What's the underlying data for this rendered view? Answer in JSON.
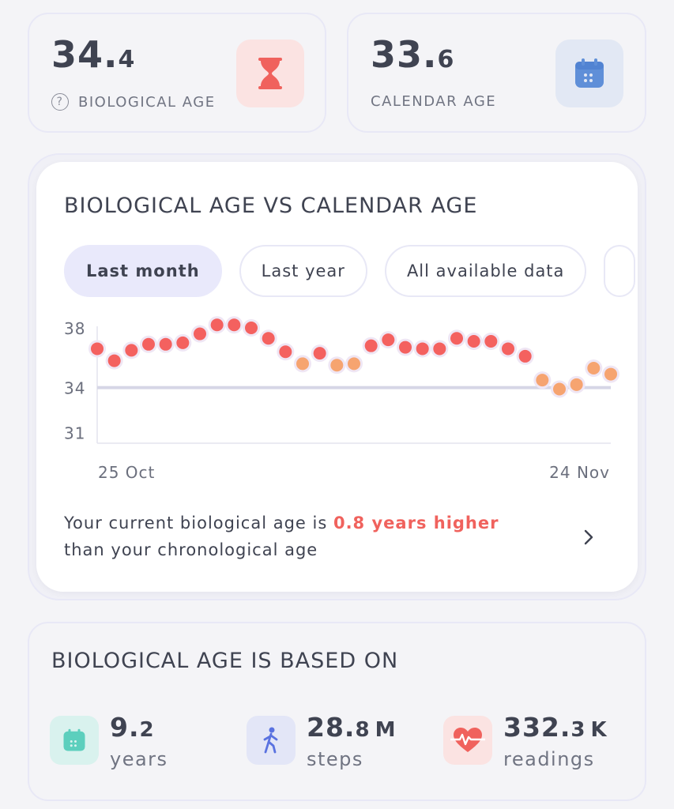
{
  "bio_age": {
    "int": "34.",
    "dec": "4",
    "label": "BIOLOGICAL AGE",
    "icon": "hourglass-icon",
    "icon_color": "#f0625d"
  },
  "cal_age": {
    "int": "33.",
    "dec": "6",
    "label": "CALENDAR AGE",
    "icon": "calendar-icon",
    "icon_color": "#5f8fd8"
  },
  "chart": {
    "title": "BIOLOGICAL AGE VS CALENDAR AGE",
    "tabs": [
      "Last month",
      "Last year",
      "All available data"
    ],
    "summary_prefix": "Your current biological age is ",
    "summary_highlight": "0.8 years higher",
    "summary_suffix": "than your chronological age"
  },
  "chart_data": {
    "type": "scatter",
    "x_labels": [
      "25 Oct",
      "24 Nov"
    ],
    "y_ticks": [
      38,
      34,
      31
    ],
    "ylim": [
      30,
      39
    ],
    "reference_line": 34,
    "values": [
      36.6,
      35.8,
      36.5,
      36.9,
      36.9,
      37.0,
      37.6,
      38.2,
      38.2,
      38.0,
      37.3,
      36.4,
      35.6,
      36.3,
      35.5,
      35.6,
      36.8,
      37.2,
      36.7,
      36.6,
      36.6,
      37.3,
      37.1,
      37.1,
      36.6,
      36.1,
      34.5,
      33.9,
      34.2,
      35.3,
      34.9
    ],
    "colors": {
      "above": "#f4615f",
      "near": "#f6a470",
      "reference": "#d6d6e6"
    }
  },
  "based_on": {
    "title": "BIOLOGICAL AGE IS BASED ON",
    "metrics": [
      {
        "int": "9.",
        "dec": "2",
        "unit": "",
        "label": "years",
        "icon": "calendar-icon"
      },
      {
        "int": "28.",
        "dec": "8",
        "unit": "M",
        "label": "steps",
        "icon": "walking-icon"
      },
      {
        "int": "332.",
        "dec": "3",
        "unit": "K",
        "label": "readings",
        "icon": "heart-rate-icon"
      }
    ]
  }
}
